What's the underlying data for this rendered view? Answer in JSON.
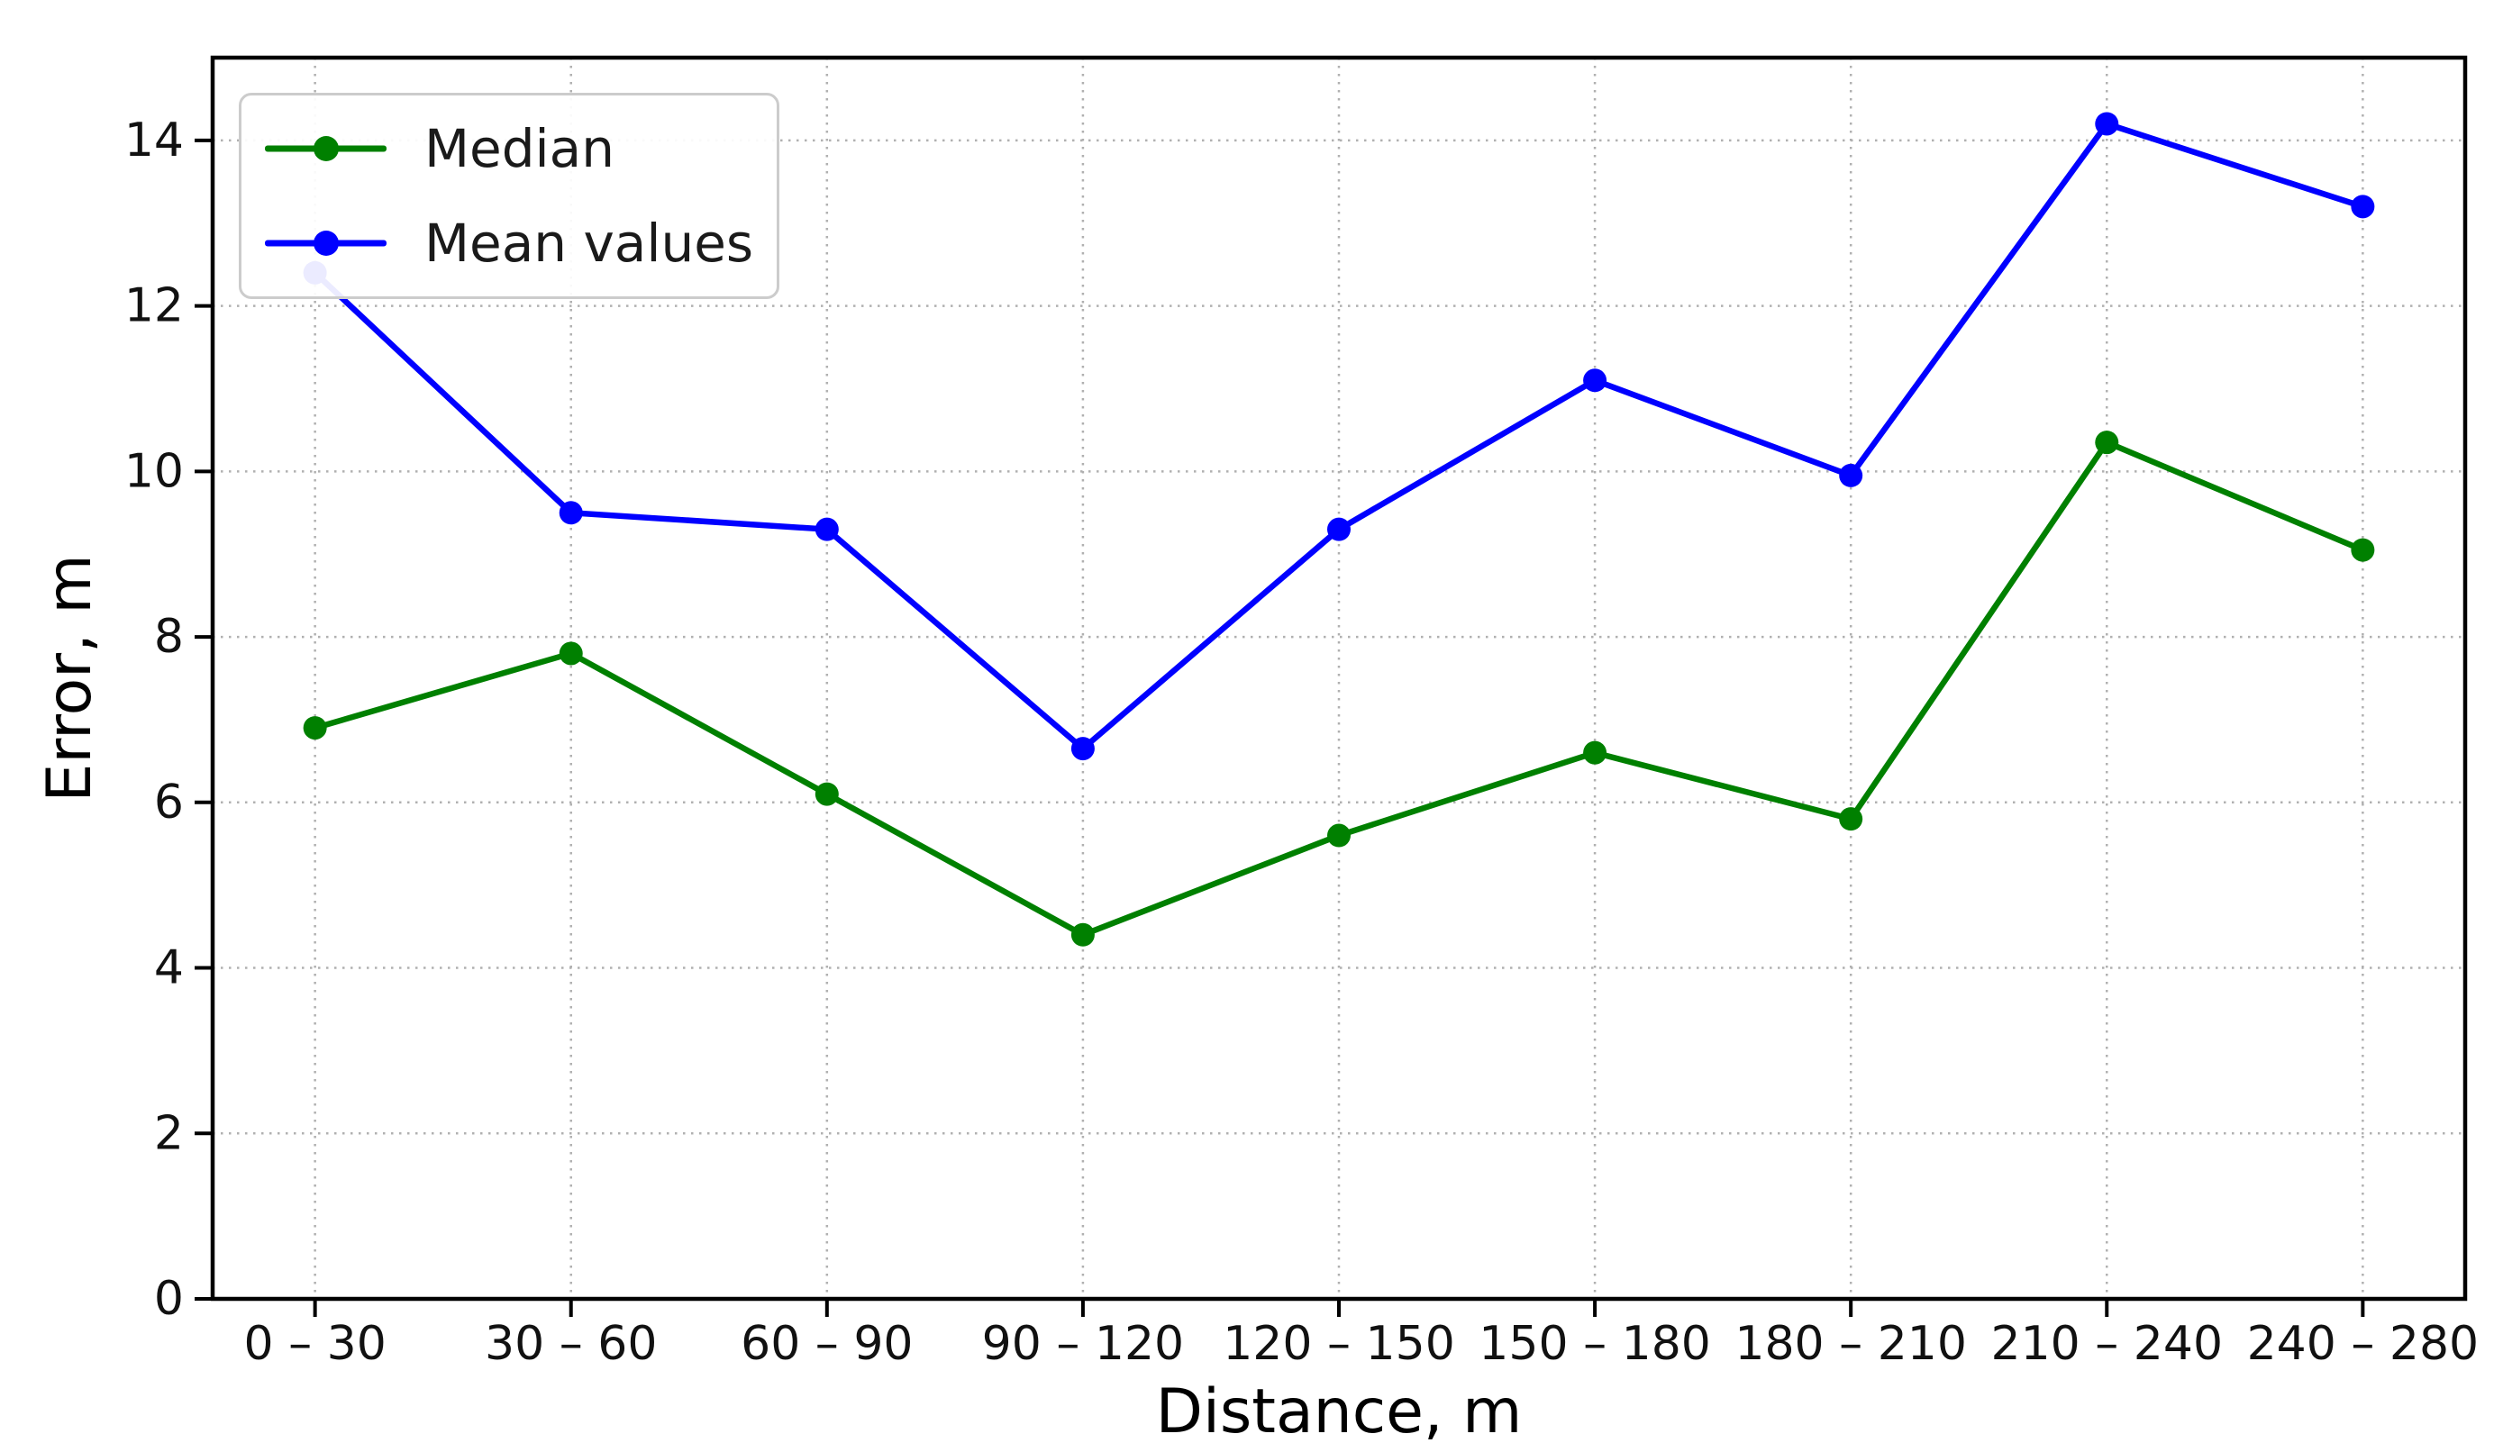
{
  "figure": {
    "background": "#ffffff",
    "spine_color": "#000000",
    "grid_color": "#b0b0b0"
  },
  "chart_data": {
    "type": "line",
    "title": "",
    "xlabel": "Distance, m",
    "ylabel": "Error, m",
    "categories": [
      "0 – 30",
      "30 – 60",
      "60 – 90",
      "90 – 120",
      "120 – 150",
      "150 – 180",
      "180 – 210",
      "210 – 240",
      "240 – 280"
    ],
    "series": [
      {
        "name": "Median",
        "color": "#008000",
        "marker": "o",
        "values": [
          6.9,
          7.8,
          6.1,
          4.4,
          5.6,
          6.6,
          5.8,
          10.35,
          9.05
        ]
      },
      {
        "name": "Mean values",
        "color": "#0000ff",
        "marker": "o",
        "values": [
          12.4,
          9.5,
          9.3,
          6.65,
          9.3,
          11.1,
          9.95,
          14.2,
          13.2
        ]
      }
    ],
    "ylim": [
      0,
      15
    ],
    "yticks": [
      0,
      2,
      4,
      6,
      8,
      10,
      12,
      14
    ],
    "x_margin_units": 0.4,
    "grid": true,
    "grid_style": "dotted",
    "legend_position": "upper left",
    "legend_labels": [
      "Median",
      "Mean values"
    ]
  }
}
